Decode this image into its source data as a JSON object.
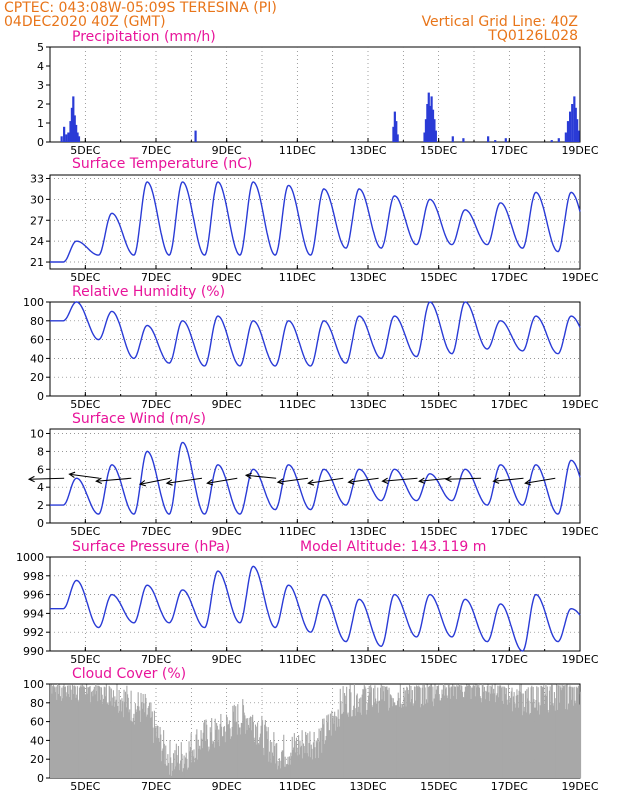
{
  "header": {
    "line1": "CPTEC:   043:08W-05:09S   TERESINA (PI)",
    "line2": "04DEC2020 40Z (GMT)",
    "right1": "Vertical Grid Line: 40Z",
    "right2": "TQ0126L028"
  },
  "colors": {
    "header": "#e8751a",
    "title": "#e8149a",
    "line": "#2a3bd6",
    "cloud": "#a8a8a8",
    "wind_vector": "#000000"
  },
  "x_ticks": [
    "5DEC",
    "7DEC",
    "9DEC",
    "11DEC",
    "13DEC",
    "15DEC",
    "17DEC",
    "19DEC"
  ],
  "chart_data": [
    {
      "type": "bar",
      "title": "Precipitation (mm/h)",
      "ylim": [
        0,
        5
      ],
      "yticks": [
        "0",
        "1",
        "2",
        "3",
        "4",
        "5"
      ],
      "x_days": [
        4.3,
        19.0
      ],
      "events": [
        {
          "day": 4.33,
          "value": 0.3
        },
        {
          "day": 4.4,
          "value": 0.8
        },
        {
          "day": 4.46,
          "value": 0.4
        },
        {
          "day": 4.52,
          "value": 0.5
        },
        {
          "day": 4.58,
          "value": 1.1
        },
        {
          "day": 4.62,
          "value": 1.8
        },
        {
          "day": 4.66,
          "value": 2.4
        },
        {
          "day": 4.7,
          "value": 1.4
        },
        {
          "day": 4.74,
          "value": 0.9
        },
        {
          "day": 4.78,
          "value": 0.5
        },
        {
          "day": 4.82,
          "value": 0.3
        },
        {
          "day": 8.12,
          "value": 0.6
        },
        {
          "day": 13.72,
          "value": 0.8
        },
        {
          "day": 13.76,
          "value": 1.6
        },
        {
          "day": 13.8,
          "value": 1.1
        },
        {
          "day": 13.84,
          "value": 0.4
        },
        {
          "day": 14.6,
          "value": 0.5
        },
        {
          "day": 14.64,
          "value": 1.2
        },
        {
          "day": 14.68,
          "value": 2.0
        },
        {
          "day": 14.72,
          "value": 2.6
        },
        {
          "day": 14.76,
          "value": 1.9
        },
        {
          "day": 14.8,
          "value": 2.4
        },
        {
          "day": 14.84,
          "value": 1.7
        },
        {
          "day": 14.88,
          "value": 1.2
        },
        {
          "day": 14.92,
          "value": 0.6
        },
        {
          "day": 15.4,
          "value": 0.3
        },
        {
          "day": 15.7,
          "value": 0.2
        },
        {
          "day": 16.4,
          "value": 0.3
        },
        {
          "day": 16.6,
          "value": 0.1
        },
        {
          "day": 16.9,
          "value": 0.2
        },
        {
          "day": 18.2,
          "value": 0.1
        },
        {
          "day": 18.4,
          "value": 0.2
        },
        {
          "day": 18.6,
          "value": 0.5
        },
        {
          "day": 18.66,
          "value": 1.1
        },
        {
          "day": 18.72,
          "value": 1.6
        },
        {
          "day": 18.78,
          "value": 2.0
        },
        {
          "day": 18.84,
          "value": 2.4
        },
        {
          "day": 18.88,
          "value": 1.8
        },
        {
          "day": 18.92,
          "value": 1.2
        },
        {
          "day": 18.96,
          "value": 0.6
        }
      ]
    },
    {
      "type": "line",
      "title": "Surface Temperature (nC)",
      "ylim": [
        20,
        33.5
      ],
      "yticks": [
        "21",
        "24",
        "27",
        "30",
        "33"
      ],
      "x_days": [
        4.0,
        19.0
      ],
      "min": [
        21.0,
        22.0,
        22.0,
        22.0,
        22.0,
        22.0,
        22.0,
        22.0,
        23.0,
        23.0,
        23.5,
        23.5,
        23.5,
        23.0,
        22.5,
        23.0
      ],
      "max": [
        24.0,
        28.0,
        32.5,
        32.5,
        32.5,
        32.5,
        32.0,
        31.5,
        31.5,
        30.5,
        30.0,
        28.5,
        29.5,
        31.0,
        31.0,
        27.0
      ]
    },
    {
      "type": "line",
      "title": "Relative Humidity (%)",
      "ylim": [
        0,
        100
      ],
      "yticks": [
        "0",
        "20",
        "40",
        "60",
        "80",
        "100"
      ],
      "x_days": [
        4.0,
        19.0
      ],
      "min": [
        80,
        60,
        40,
        35,
        32,
        32,
        32,
        32,
        35,
        40,
        42,
        45,
        50,
        48,
        45,
        50
      ],
      "max": [
        100,
        90,
        75,
        80,
        85,
        80,
        80,
        80,
        85,
        85,
        100,
        100,
        80,
        85,
        85,
        85
      ]
    },
    {
      "type": "line",
      "title": "Surface Wind (m/s)",
      "ylim": [
        0,
        10.5
      ],
      "yticks": [
        "0",
        "2",
        "4",
        "6",
        "8",
        "10"
      ],
      "x_days": [
        4.0,
        19.0
      ],
      "min": [
        2.0,
        1.0,
        1.0,
        1.0,
        1.0,
        1.0,
        1.5,
        1.5,
        2.0,
        2.5,
        2.5,
        2.5,
        2.0,
        2.0,
        1.0,
        1.5
      ],
      "max": [
        5.0,
        6.5,
        8.0,
        9.0,
        6.5,
        6.0,
        6.5,
        6.0,
        6.0,
        6.0,
        5.5,
        6.0,
        6.5,
        6.5,
        7.0,
        7.0
      ],
      "vectors": [
        {
          "day": 4.4,
          "u": -3.5,
          "v": -0.2
        },
        {
          "day": 5.4,
          "u": -3.0,
          "v": 0.8
        },
        {
          "day": 6.3,
          "u": -3.5,
          "v": -0.6
        },
        {
          "day": 7.4,
          "u": -3.0,
          "v": -1.2
        },
        {
          "day": 8.3,
          "u": -3.5,
          "v": -1.0
        },
        {
          "day": 9.3,
          "u": -3.0,
          "v": -1.0
        },
        {
          "day": 10.4,
          "u": -3.0,
          "v": 0.6
        },
        {
          "day": 11.3,
          "u": -3.0,
          "v": -0.8
        },
        {
          "day": 12.3,
          "u": -3.5,
          "v": -1.0
        },
        {
          "day": 13.3,
          "u": -3.0,
          "v": -0.8
        },
        {
          "day": 14.4,
          "u": -3.5,
          "v": -0.6
        },
        {
          "day": 15.3,
          "u": -3.0,
          "v": -0.6
        },
        {
          "day": 16.2,
          "u": -3.5,
          "v": -0.2
        },
        {
          "day": 17.4,
          "u": -3.0,
          "v": -0.6
        },
        {
          "day": 18.3,
          "u": -3.0,
          "v": -1.0
        }
      ]
    },
    {
      "type": "line",
      "title": "Surface Pressure (hPa)",
      "subtitle": "Model Altitude: 143.119 m",
      "ylim": [
        990,
        1000
      ],
      "yticks": [
        "990",
        "992",
        "994",
        "996",
        "998",
        "1000"
      ],
      "x_days": [
        4.0,
        19.0
      ],
      "min": [
        994.5,
        992.5,
        993.0,
        993.0,
        992.5,
        993.0,
        992.5,
        992.0,
        991.0,
        990.5,
        991.5,
        991.5,
        991.0,
        990.0,
        991.0,
        992.5
      ],
      "max": [
        997.5,
        996.0,
        997.0,
        996.5,
        998.5,
        999.0,
        997.0,
        996.0,
        995.5,
        996.0,
        996.0,
        995.5,
        995.0,
        996.0,
        994.5,
        994.0
      ]
    },
    {
      "type": "area",
      "title": "Cloud Cover (%)",
      "ylim": [
        0,
        100
      ],
      "yticks": [
        "0",
        "20",
        "40",
        "60",
        "80",
        "100"
      ],
      "x_days": [
        4.0,
        19.0
      ],
      "daily": [
        100,
        98,
        75,
        20,
        45,
        65,
        28,
        40,
        85,
        90,
        95,
        100,
        100,
        85,
        92,
        98
      ]
    }
  ]
}
